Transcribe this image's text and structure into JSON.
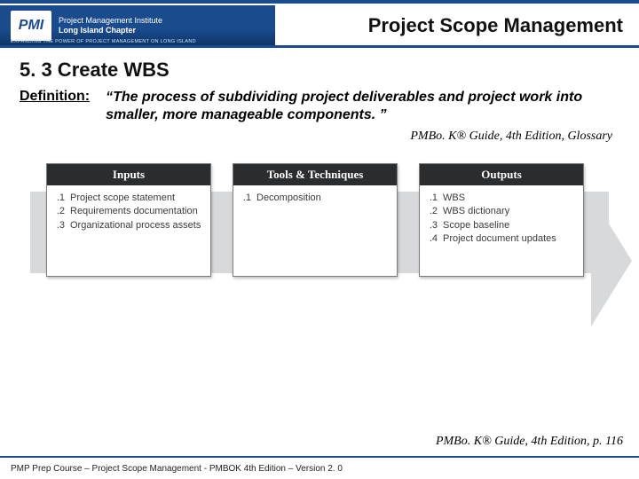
{
  "colors": {
    "brand_blue": "#1a4b8c",
    "band_gray": "#d7d9db",
    "col_header_bg": "#2b2c2e",
    "col_border": "#7a7c7f",
    "text": "#111111",
    "body_text": "#3a3a3a",
    "white": "#ffffff"
  },
  "header": {
    "logo_acronym": "PMI",
    "logo_line1": "Project Management Institute",
    "logo_line2": "Long Island Chapter",
    "logo_tagline": "EXPANDING THE POWER OF PROJECT MANAGEMENT ON LONG ISLAND",
    "page_title": "Project Scope Management"
  },
  "section": {
    "number_title": "5. 3 Create WBS",
    "definition_label": "Definition:",
    "definition_text": "“The process of subdividing project deliverables and project work into smaller, more manageable components. ”",
    "citation_top": "PMBo. K® Guide, 4th Edition, Glossary"
  },
  "diagram": {
    "type": "process-arrow-3col",
    "band_color": "#d7d9db",
    "columns": [
      {
        "header": "Inputs",
        "items": [
          {
            "n": ".1",
            "t": "Project scope statement"
          },
          {
            "n": ".2",
            "t": "Requirements documentation"
          },
          {
            "n": ".3",
            "t": "Organizational process assets"
          }
        ]
      },
      {
        "header": "Tools & Techniques",
        "items": [
          {
            "n": ".1",
            "t": "Decomposition"
          }
        ]
      },
      {
        "header": "Outputs",
        "items": [
          {
            "n": ".1",
            "t": "WBS"
          },
          {
            "n": ".2",
            "t": "WBS dictionary"
          },
          {
            "n": ".3",
            "t": "Scope baseline"
          },
          {
            "n": ".4",
            "t": "Project document updates"
          }
        ]
      }
    ],
    "column_header_bg": "#2b2c2e",
    "column_bg": "#ffffff",
    "column_border": "#7a7c7f",
    "header_fontsize": 13,
    "item_fontsize": 11
  },
  "citation_bottom": "PMBo. K® Guide, 4th Edition, p. 116",
  "footer": "PMP Prep Course – Project Scope Management - PMBOK 4th Edition – Version 2. 0"
}
